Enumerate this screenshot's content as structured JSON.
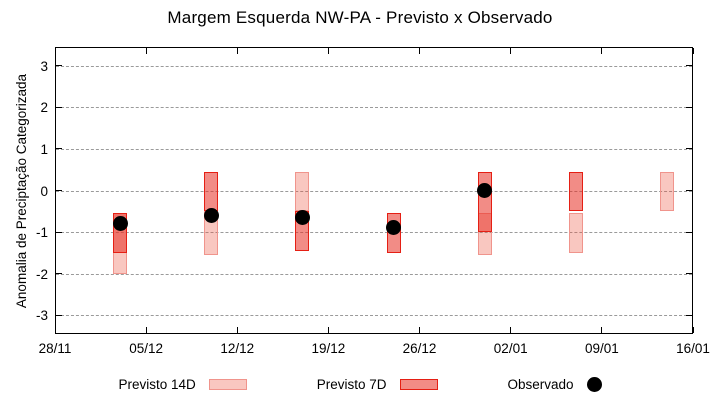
{
  "title": "Margem Esquerda NW-PA - Previsto x Observado",
  "ylabel": "Anomalia de Preciptação Categorizada",
  "legend": {
    "p14_label": "Previsto 14D",
    "p7_label": "Previsto 7D",
    "obs_label": "Observado"
  },
  "colors": {
    "previsto_14d_fill": "rgba(235,80,60,0.32)",
    "previsto_14d_border": "#f0948c",
    "previsto_7d_fill": "rgba(232,45,35,0.55)",
    "previsto_7d_border": "#e51f14",
    "observado": "#000000",
    "grid": "#9a9a9a",
    "axis": "#000000"
  },
  "chart_data": {
    "type": "bar",
    "subtype": "range-bars-with-observed-points",
    "title": "Margem Esquerda NW-PA - Previsto x Observado",
    "xlabel": "",
    "ylabel": "Anomalia de Preciptação Categorizada",
    "ylim": [
      -3.45,
      3.45
    ],
    "y_ticks": [
      3,
      2,
      1,
      0,
      -1,
      -2,
      -3
    ],
    "x_tick_labels": [
      "28/11",
      "05/12",
      "12/12",
      "19/12",
      "26/12",
      "02/01",
      "09/01",
      "16/01"
    ],
    "x_tick_days": [
      0,
      7,
      14,
      21,
      28,
      35,
      42,
      49
    ],
    "x_total_days": 49,
    "grid": "horizontal dashed at integer y values",
    "legend_position": "bottom outside",
    "series": [
      {
        "name": "Previsto 14D",
        "style": "light-pink range box"
      },
      {
        "name": "Previsto 7D",
        "style": "salmon-red range box"
      },
      {
        "name": "Observado",
        "style": "black filled circle"
      }
    ],
    "groups": [
      {
        "date": "03/12",
        "day": 5,
        "previsto_14d": [
          -0.55,
          -2.0
        ],
        "previsto_7d": [
          -0.55,
          -1.5
        ],
        "observado": -0.8
      },
      {
        "date": "10/12",
        "day": 12,
        "previsto_14d": [
          -0.5,
          -1.55
        ],
        "previsto_7d": [
          0.45,
          -0.5
        ],
        "observado": -0.6
      },
      {
        "date": "17/12",
        "day": 19,
        "previsto_14d": [
          0.45,
          -0.5
        ],
        "previsto_7d": [
          -0.5,
          -1.45
        ],
        "observado": -0.65
      },
      {
        "date": "24/12",
        "day": 26,
        "previsto_14d": null,
        "previsto_7d": [
          -0.55,
          -1.5
        ],
        "observado": -0.9
      },
      {
        "date": "31/12",
        "day": 33,
        "previsto_14d": [
          -0.55,
          -1.55
        ],
        "previsto_7d": [
          0.45,
          -1.0
        ],
        "observado": 0.0
      },
      {
        "date": "07/01",
        "day": 40,
        "previsto_14d": [
          -0.55,
          -1.5
        ],
        "previsto_7d": [
          0.45,
          -0.5
        ],
        "observado": null
      },
      {
        "date": "14/01",
        "day": 47,
        "previsto_14d": [
          0.45,
          -0.5
        ],
        "previsto_7d": null,
        "observado": null
      }
    ]
  }
}
